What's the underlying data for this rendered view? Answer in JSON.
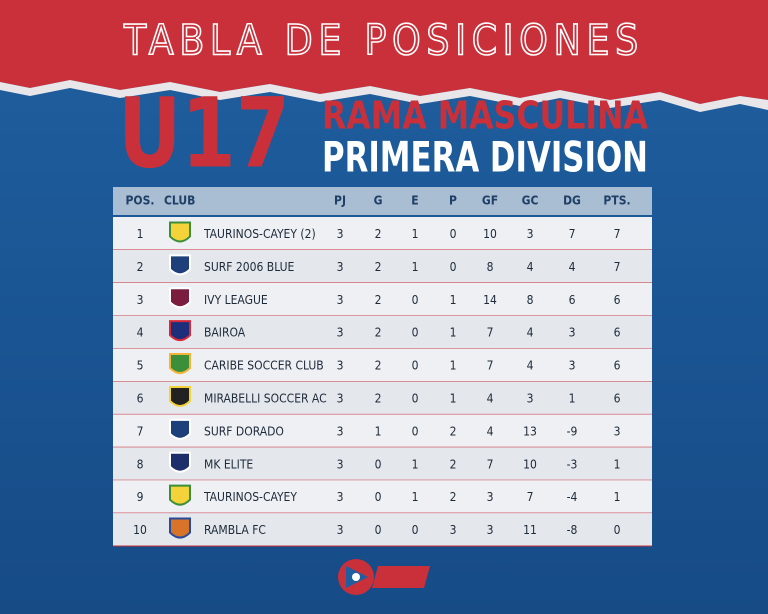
{
  "header": {
    "title": "TABLA DE POSICIONES",
    "age": "U17",
    "branch": "RAMA MASCULINA",
    "division": "PRIMERA DIVISION"
  },
  "table": {
    "headers": [
      "POS.",
      "CLUB",
      "PJ",
      "G",
      "E",
      "P",
      "GF",
      "GC",
      "DG",
      "PTS."
    ],
    "rows": [
      [
        1,
        "TAURINOS-CAYEY (2)",
        3,
        2,
        1,
        0,
        10,
        3,
        7,
        7
      ],
      [
        2,
        "SURF 2006 BLUE",
        3,
        2,
        1,
        0,
        8,
        4,
        4,
        7
      ],
      [
        3,
        "IVY LEAGUE",
        3,
        2,
        0,
        1,
        14,
        8,
        6,
        6
      ],
      [
        4,
        "BAIROA",
        3,
        2,
        0,
        1,
        7,
        4,
        3,
        6
      ],
      [
        5,
        "CARIBE SOCCER CLUB",
        3,
        2,
        0,
        1,
        7,
        4,
        3,
        6
      ],
      [
        6,
        "MIRABELLI SOCCER AC",
        3,
        2,
        0,
        1,
        4,
        3,
        1,
        6
      ],
      [
        7,
        "SURF DORADO",
        3,
        1,
        0,
        2,
        4,
        13,
        -9,
        3
      ],
      [
        8,
        "MK ELITE",
        3,
        0,
        1,
        2,
        7,
        10,
        -3,
        1
      ],
      [
        9,
        "TAURINOS-CAYEY",
        3,
        0,
        1,
        2,
        3,
        7,
        -4,
        1
      ],
      [
        10,
        "RAMBLA FC",
        3,
        0,
        0,
        3,
        3,
        11,
        -8,
        0
      ]
    ]
  }
}
